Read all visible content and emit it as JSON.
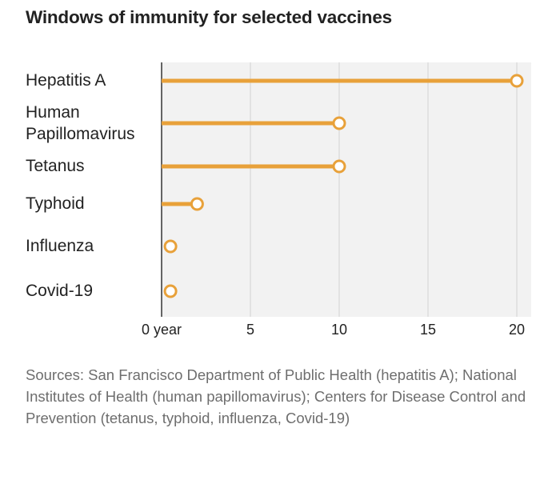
{
  "title": "Windows of immunity for selected vaccines",
  "chart_data": {
    "type": "lollipop",
    "categories": [
      "Hepatitis A",
      "Human Papillomavirus",
      "Tetanus",
      "Typhoid",
      "Influenza",
      "Covid-19"
    ],
    "values": [
      20,
      10,
      10,
      2,
      0.5,
      0.5
    ],
    "xlim": [
      0,
      21
    ],
    "xticks": [
      0,
      5,
      10,
      15,
      20
    ],
    "xtick_labels": [
      "0 year",
      "5",
      "10",
      "15",
      "20"
    ],
    "color": "#e8a13a",
    "grid": true
  },
  "source": "Sources: San Francisco Department of Public Health (hepatitis A); National Institutes of Health (human papillomavirus); Centers for Disease Control and Prevention (tetanus, typhoid, influenza, Covid-19)"
}
